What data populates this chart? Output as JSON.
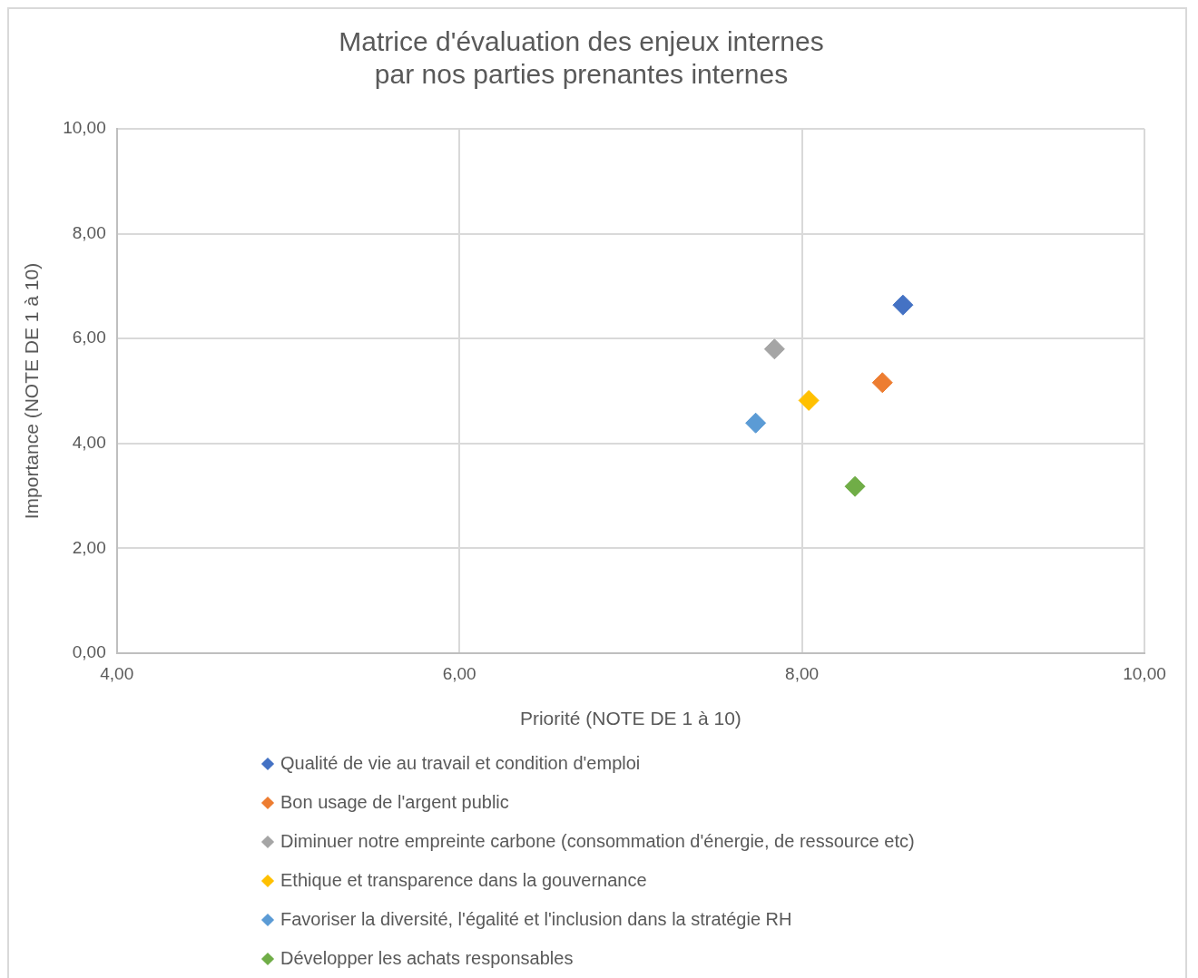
{
  "chart_data": {
    "type": "scatter",
    "title": "Matrice d'évaluation des enjeux internes\npar nos parties prenantes internes",
    "xlabel": "Priorité (NOTE DE 1 à 10)",
    "ylabel": "Importance (NOTE DE 1 à 10)",
    "xlim": [
      4,
      10
    ],
    "xticks": [
      {
        "value": 4,
        "label": "4,00"
      },
      {
        "value": 6,
        "label": "6,00"
      },
      {
        "value": 8,
        "label": "8,00"
      },
      {
        "value": 10,
        "label": "10,00"
      }
    ],
    "ylim": [
      0,
      10
    ],
    "yticks": [
      {
        "value": 0,
        "label": "0,00"
      },
      {
        "value": 2,
        "label": "2,00"
      },
      {
        "value": 4,
        "label": "4,00"
      },
      {
        "value": 6,
        "label": "6,00"
      },
      {
        "value": 8,
        "label": "8,00"
      },
      {
        "value": 10,
        "label": "10,00"
      }
    ],
    "grid": true,
    "legend": "bottom",
    "marker": "diamond",
    "series": [
      {
        "name": "Qualité de vie au travail et condition d'emploi",
        "color": "#4472c4",
        "x": [
          8.59
        ],
        "values": [
          6.64
        ]
      },
      {
        "name": "Bon usage de l'argent public",
        "color": "#ed7d31",
        "x": [
          8.47
        ],
        "values": [
          5.16
        ]
      },
      {
        "name": "Diminuer notre empreinte carbone (consommation d'énergie, de ressource etc)",
        "color": "#a5a5a5",
        "x": [
          7.84
        ],
        "values": [
          5.8
        ]
      },
      {
        "name": "Ethique et transparence dans la gouvernance",
        "color": "#ffc000",
        "x": [
          8.04
        ],
        "values": [
          4.82
        ]
      },
      {
        "name": "Favoriser la diversité, l'égalité et l'inclusion dans la stratégie RH",
        "color": "#5b9bd5",
        "x": [
          7.73
        ],
        "values": [
          4.39
        ]
      },
      {
        "name": "Développer les achats responsables",
        "color": "#70ad47",
        "x": [
          8.31
        ],
        "values": [
          3.18
        ]
      }
    ]
  }
}
